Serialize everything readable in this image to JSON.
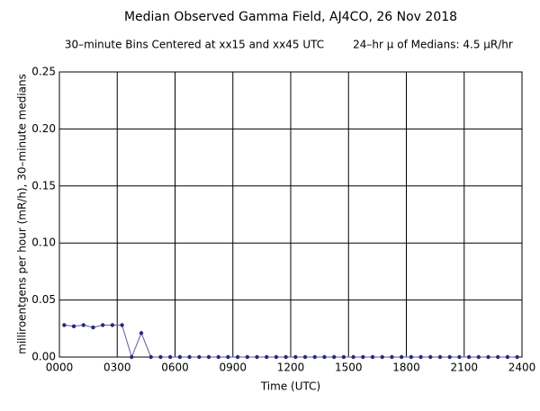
{
  "chart_data": {
    "type": "line",
    "title": "Median Observed Gamma Field, AJ4CO, 26 Nov 2018",
    "subtitle": "30–minute Bins Centered at xx15 and xx45 UTC",
    "annotation": "24–hr μ of Medians: 4.5 μR/hr",
    "x_label": "Time (UTC)",
    "y_label": "milliroentgens per hour (mR/h), 30–minute medians",
    "color": "#5a5aa0",
    "marker_color": "#2a2a78",
    "grid": true,
    "xlim": [
      0,
      24
    ],
    "xticks": [
      {
        "value": 0,
        "label": "0000"
      },
      {
        "value": 3,
        "label": "0300"
      },
      {
        "value": 6,
        "label": "0600"
      },
      {
        "value": 9,
        "label": "0900"
      },
      {
        "value": 12,
        "label": "1200"
      },
      {
        "value": 15,
        "label": "1500"
      },
      {
        "value": 18,
        "label": "1800"
      },
      {
        "value": 21,
        "label": "2100"
      },
      {
        "value": 24,
        "label": "2400"
      }
    ],
    "ylim": [
      0,
      0.25
    ],
    "yticks": [
      {
        "value": 0,
        "label": "0.00"
      },
      {
        "value": 0.05,
        "label": "0.05"
      },
      {
        "value": 0.1,
        "label": "0.10"
      },
      {
        "value": 0.15,
        "label": "0.15"
      },
      {
        "value": 0.2,
        "label": "0.20"
      },
      {
        "value": 0.25,
        "label": "0.25"
      }
    ],
    "x": [
      0.25,
      0.75,
      1.25,
      1.75,
      2.25,
      2.75,
      3.25,
      3.75,
      4.25,
      4.75,
      5.25,
      5.75,
      6.25,
      6.75,
      7.25,
      7.75,
      8.25,
      8.75,
      9.25,
      9.75,
      10.25,
      10.75,
      11.25,
      11.75,
      12.25,
      12.75,
      13.25,
      13.75,
      14.25,
      14.75,
      15.25,
      15.75,
      16.25,
      16.75,
      17.25,
      17.75,
      18.25,
      18.75,
      19.25,
      19.75,
      20.25,
      20.75,
      21.25,
      21.75,
      22.25,
      22.75,
      23.25,
      23.75
    ],
    "values": [
      0.028,
      0.027,
      0.028,
      0.026,
      0.028,
      0.028,
      0.028,
      0,
      0.021,
      0,
      0,
      0,
      0,
      0,
      0,
      0,
      0,
      0,
      0,
      0,
      0,
      0,
      0,
      0,
      0,
      0,
      0,
      0,
      0,
      0,
      0,
      0,
      0,
      0,
      0,
      0,
      0,
      0,
      0,
      0,
      0,
      0,
      0,
      0,
      0,
      0,
      0,
      0
    ]
  }
}
